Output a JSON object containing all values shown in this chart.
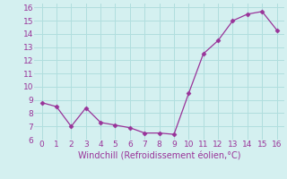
{
  "x": [
    0,
    1,
    2,
    3,
    4,
    5,
    6,
    7,
    8,
    9,
    10,
    11,
    12,
    13,
    14,
    15,
    16
  ],
  "y": [
    8.8,
    8.5,
    7.0,
    8.4,
    7.3,
    7.1,
    6.9,
    6.5,
    6.5,
    6.4,
    9.5,
    12.5,
    13.5,
    15.0,
    15.5,
    15.7,
    14.3
  ],
  "line_color": "#993399",
  "marker": "D",
  "marker_size": 2.5,
  "xlim": [
    -0.5,
    16.5
  ],
  "ylim": [
    6,
    16.3
  ],
  "xticks": [
    0,
    1,
    2,
    3,
    4,
    5,
    6,
    7,
    8,
    9,
    10,
    11,
    12,
    13,
    14,
    15,
    16
  ],
  "yticks": [
    6,
    7,
    8,
    9,
    10,
    11,
    12,
    13,
    14,
    15,
    16
  ],
  "xlabel": "Windchill (Refroidissement éolien,°C)",
  "background_color": "#d4f0f0",
  "grid_color": "#b0dede",
  "tick_color": "#993399",
  "label_color": "#993399",
  "xlabel_fontsize": 7,
  "tick_fontsize": 6.5
}
